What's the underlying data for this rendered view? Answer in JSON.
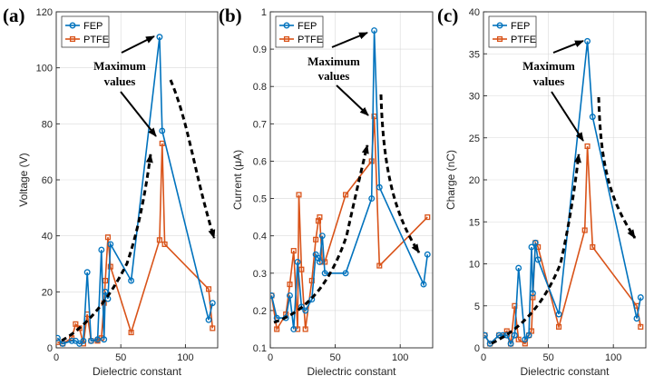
{
  "colors": {
    "FEP": "#0072BD",
    "PTFE": "#D95319"
  },
  "annotation_text": [
    "Maximum",
    "values"
  ],
  "chart_data": [
    {
      "type": "line",
      "panel_label": "(a)",
      "title": "",
      "xlabel": "Dielectric constant",
      "ylabel": "Voltage (V)",
      "xlim": [
        0,
        125
      ],
      "ylim": [
        0,
        120
      ],
      "xticks": [
        0,
        50,
        100
      ],
      "yticks": [
        0,
        20,
        40,
        60,
        80,
        100,
        120
      ],
      "grid": true,
      "legend": "top-left",
      "series": [
        {
          "name": "FEP",
          "color": "#0072BD",
          "marker": "circle",
          "x": [
            1,
            5,
            12,
            15,
            18,
            21,
            24,
            27,
            32,
            35,
            37,
            38,
            40,
            42,
            58,
            80,
            82,
            118,
            121
          ],
          "y": [
            3.5,
            1.5,
            2.5,
            2.5,
            1.5,
            2.5,
            27,
            2.5,
            3,
            35,
            3,
            20,
            17.5,
            37,
            24,
            111,
            77.5,
            10,
            16
          ]
        },
        {
          "name": "PTFE",
          "color": "#D95319",
          "marker": "square",
          "x": [
            1,
            5,
            12,
            15,
            18,
            21,
            24,
            27,
            32,
            35,
            37,
            38,
            40,
            42,
            58,
            80,
            82,
            84,
            118,
            121
          ],
          "y": [
            2,
            1.5,
            3.5,
            8.5,
            7,
            1.5,
            12,
            2.5,
            2.5,
            3.5,
            16,
            24,
            39.5,
            29,
            5.5,
            38.5,
            73,
            37,
            21,
            7
          ]
        }
      ]
    },
    {
      "type": "line",
      "panel_label": "(b)",
      "title": "",
      "xlabel": "Dielectric constant",
      "ylabel": "Current (μA)",
      "xlim": [
        0,
        125
      ],
      "ylim": [
        0.1,
        1
      ],
      "xticks": [
        0,
        50,
        100
      ],
      "yticks": [
        0.1,
        0.2,
        0.3,
        0.4,
        0.5,
        0.6,
        0.7,
        0.8,
        0.9,
        1
      ],
      "grid": true,
      "legend": "top-left",
      "series": [
        {
          "name": "FEP",
          "color": "#0072BD",
          "marker": "circle",
          "x": [
            1,
            5,
            12,
            15,
            18,
            21,
            24,
            27,
            32,
            35,
            37,
            38,
            40,
            42,
            58,
            78,
            80,
            84,
            118,
            121
          ],
          "y": [
            0.24,
            0.18,
            0.18,
            0.24,
            0.15,
            0.33,
            0.21,
            0.2,
            0.23,
            0.35,
            0.34,
            0.33,
            0.4,
            0.3,
            0.3,
            0.5,
            0.95,
            0.53,
            0.27,
            0.35
          ]
        },
        {
          "name": "PTFE",
          "color": "#D95319",
          "marker": "square",
          "x": [
            1,
            5,
            12,
            15,
            18,
            21,
            22,
            24,
            27,
            32,
            35,
            37,
            38,
            40,
            42,
            58,
            78,
            80,
            84,
            121
          ],
          "y": [
            0.24,
            0.15,
            0.19,
            0.27,
            0.36,
            0.15,
            0.51,
            0.31,
            0.15,
            0.28,
            0.39,
            0.44,
            0.45,
            0.33,
            0.33,
            0.51,
            0.6,
            0.72,
            0.32,
            0.45
          ]
        }
      ]
    },
    {
      "type": "line",
      "panel_label": "(c)",
      "title": "",
      "xlabel": "Dielectric constant",
      "ylabel": "Charge (nC)",
      "xlim": [
        0,
        125
      ],
      "ylim": [
        0,
        40
      ],
      "xticks": [
        0,
        50,
        100
      ],
      "yticks": [
        0,
        5,
        10,
        15,
        20,
        25,
        30,
        35,
        40
      ],
      "grid": true,
      "legend": "top-left",
      "series": [
        {
          "name": "FEP",
          "color": "#0072BD",
          "marker": "circle",
          "x": [
            1,
            5,
            12,
            15,
            18,
            21,
            24,
            27,
            32,
            35,
            37,
            38,
            40,
            42,
            58,
            80,
            84,
            118,
            121
          ],
          "y": [
            1.5,
            0.5,
            1.5,
            1.5,
            1.5,
            0.5,
            1.5,
            9.5,
            1,
            1.5,
            12,
            6.5,
            12.5,
            10.5,
            4,
            36.5,
            27.5,
            3.5,
            6
          ]
        },
        {
          "name": "PTFE",
          "color": "#D95319",
          "marker": "square",
          "x": [
            1,
            5,
            12,
            15,
            18,
            21,
            24,
            27,
            32,
            35,
            37,
            38,
            40,
            42,
            58,
            78,
            80,
            84,
            118,
            121
          ],
          "y": [
            1.5,
            0.5,
            1.5,
            1.5,
            2,
            0.5,
            5,
            1,
            0.5,
            1.5,
            2,
            6,
            12.5,
            12,
            2.5,
            14,
            24,
            12,
            5,
            2.5
          ]
        }
      ]
    }
  ]
}
